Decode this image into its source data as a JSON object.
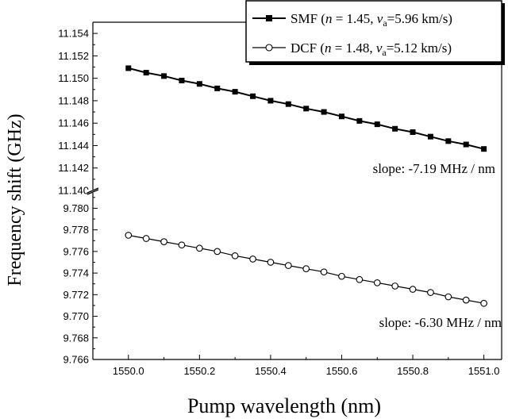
{
  "chart_data": {
    "type": "line",
    "title": "",
    "xlabel": "Pump wavelength (nm)",
    "ylabel": "Frequency shift (GHz)",
    "xlim": [
      1549.9,
      1551.05
    ],
    "x_ticks": [
      "1550.0",
      "1550.2",
      "1550.4",
      "1550.6",
      "1550.8",
      "1551.0"
    ],
    "y_axis_break": true,
    "y_upper_range": [
      11.14,
      11.155
    ],
    "y_upper_ticks": [
      "11.140",
      "11.142",
      "11.144",
      "11.146",
      "11.148",
      "11.150",
      "11.152",
      "11.154"
    ],
    "y_lower_range": [
      9.766,
      9.7815
    ],
    "y_lower_ticks": [
      "9.766",
      "9.768",
      "9.770",
      "9.772",
      "9.774",
      "9.776",
      "9.778",
      "9.780"
    ],
    "x": [
      1550.0,
      1550.05,
      1550.1,
      1550.15,
      1550.2,
      1550.25,
      1550.3,
      1550.35,
      1550.4,
      1550.45,
      1550.5,
      1550.55,
      1550.6,
      1550.65,
      1550.7,
      1550.75,
      1550.8,
      1550.85,
      1550.9,
      1550.95,
      1551.0
    ],
    "series": [
      {
        "legend_main": "SMF (",
        "legend_n": "n",
        "legend_mid": " = 1.45, ",
        "legend_v": "v",
        "legend_sub": "a",
        "legend_tail": "=5.96 km/s)",
        "marker": "filled-square",
        "segment": "upper",
        "values": [
          11.1509,
          11.1505,
          11.1502,
          11.1498,
          11.1495,
          11.1491,
          11.1488,
          11.1484,
          11.148,
          11.1477,
          11.1473,
          11.147,
          11.1466,
          11.1462,
          11.1459,
          11.1455,
          11.1452,
          11.1448,
          11.1444,
          11.1441,
          11.1437
        ]
      },
      {
        "legend_main": "DCF (",
        "legend_n": "n",
        "legend_mid": " = 1.48, ",
        "legend_v": "v",
        "legend_sub": "a",
        "legend_tail": "=5.12 km/s)",
        "marker": "open-circle",
        "segment": "lower",
        "values": [
          9.7775,
          9.7772,
          9.7769,
          9.7766,
          9.7763,
          9.776,
          9.7756,
          9.7753,
          9.775,
          9.7747,
          9.7744,
          9.7741,
          9.7737,
          9.7734,
          9.7731,
          9.7728,
          9.7725,
          9.7722,
          9.7718,
          9.7715,
          9.7712
        ]
      }
    ],
    "annotations": [
      {
        "text": "slope: -7.19 MHz / nm",
        "segment": "upper"
      },
      {
        "text": "slope: -6.30 MHz / nm",
        "segment": "lower"
      }
    ],
    "grid": false,
    "legend_position": "top-right"
  },
  "colors": {
    "line": "#000000",
    "marker_fill": "#000000",
    "open_marker_fill": "#ffffff",
    "background": "#ffffff"
  }
}
